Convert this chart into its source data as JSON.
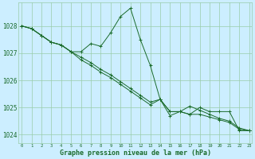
{
  "title": "Graphe pression niveau de la mer (hPa)",
  "bg_color": "#cceeff",
  "grid_color": "#99ccaa",
  "line_color": "#1a6b2a",
  "x_values": [
    0,
    1,
    2,
    3,
    4,
    5,
    6,
    7,
    8,
    9,
    10,
    11,
    12,
    13,
    14,
    15,
    16,
    17,
    18,
    19,
    20,
    21,
    22,
    23
  ],
  "line1": [
    1028.0,
    1027.9,
    1027.65,
    1027.4,
    1027.3,
    1027.05,
    1027.05,
    1027.35,
    1027.25,
    1027.75,
    1028.35,
    1028.65,
    1027.5,
    1026.55,
    1025.3,
    1024.7,
    1024.85,
    1024.75,
    1025.0,
    1024.85,
    1024.85,
    1024.85,
    1024.15,
    1024.15
  ],
  "line2": [
    1028.0,
    1027.9,
    1027.65,
    1027.4,
    1027.3,
    1027.05,
    1026.75,
    1026.55,
    1026.3,
    1026.1,
    1025.85,
    1025.6,
    1025.35,
    1025.1,
    1025.3,
    1024.85,
    1024.85,
    1024.75,
    1024.75,
    1024.65,
    1024.55,
    1024.45,
    1024.2,
    1024.15
  ],
  "line3": [
    1028.0,
    1027.9,
    1027.65,
    1027.4,
    1027.3,
    1027.05,
    1026.85,
    1026.65,
    1026.4,
    1026.2,
    1025.95,
    1025.7,
    1025.45,
    1025.2,
    1025.3,
    1024.85,
    1024.85,
    1025.05,
    1024.9,
    1024.75,
    1024.6,
    1024.5,
    1024.25,
    1024.15
  ],
  "ylim": [
    1023.7,
    1028.85
  ],
  "yticks": [
    1024,
    1025,
    1026,
    1027,
    1028
  ],
  "xticks": [
    0,
    1,
    2,
    3,
    4,
    5,
    6,
    7,
    8,
    9,
    10,
    11,
    12,
    13,
    14,
    15,
    16,
    17,
    18,
    19,
    20,
    21,
    22,
    23
  ],
  "tick_fontsize": 5.5,
  "xlabel_fontsize": 6.0
}
